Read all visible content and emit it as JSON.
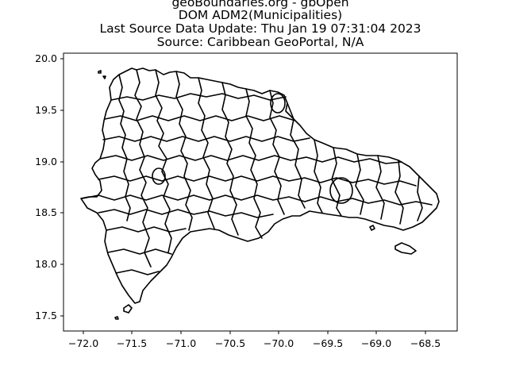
{
  "title": {
    "lines": [
      "geoBoundaries.org - gbOpen",
      "DOM ADM2(Municipalities)",
      "Last Source Data Update: Thu Jan 19 07:31:04 2023",
      "Source: Caribbean GeoPortal, N/A"
    ]
  },
  "chart_data": {
    "type": "map",
    "country": "DOM",
    "admin_level": "ADM2",
    "x_ticks": [
      "−72.0",
      "−71.5",
      "−71.0",
      "−70.5",
      "−70.0",
      "−69.5",
      "−69.0",
      "−68.5"
    ],
    "x_tick_values": [
      -72.0,
      -71.5,
      -71.0,
      -70.5,
      -70.0,
      -69.5,
      -69.0,
      -68.5
    ],
    "y_ticks": [
      "17.5",
      "18.0",
      "18.5",
      "19.0",
      "19.5",
      "20.0"
    ],
    "y_tick_values": [
      17.5,
      18.0,
      18.5,
      19.0,
      19.5,
      20.0
    ],
    "xlim": [
      -72.22,
      -68.2
    ],
    "ylim": [
      17.35,
      20.05
    ],
    "grid": false,
    "fill_color": "#ffffff",
    "edge_color": "#000000"
  }
}
